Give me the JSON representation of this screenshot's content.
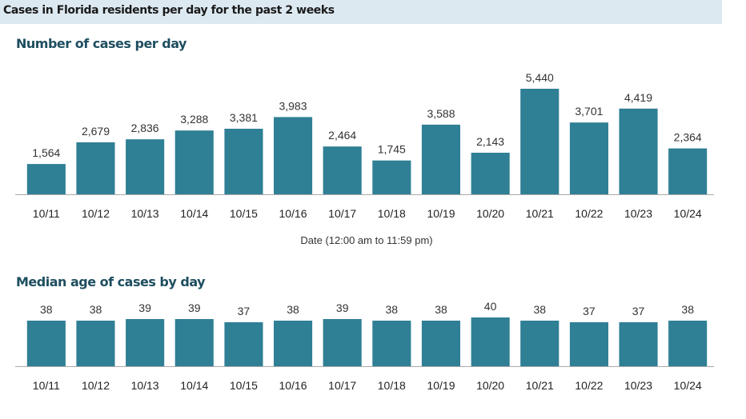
{
  "header": {
    "title": "Cases in Florida residents per day for the past 2 weeks"
  },
  "colors": {
    "bar": "#2f7f95",
    "axis": "#aaaaaa",
    "header_band": "#dde9f1",
    "chart_title": "#1e4e60"
  },
  "chart_data": [
    {
      "type": "bar",
      "title": "Number of cases per day",
      "xlabel": "Date (12:00 am to 11:59 pm)",
      "ylabel": "",
      "categories": [
        "10/11",
        "10/12",
        "10/13",
        "10/14",
        "10/15",
        "10/16",
        "10/17",
        "10/18",
        "10/19",
        "10/20",
        "10/21",
        "10/22",
        "10/23",
        "10/24"
      ],
      "values": [
        1564,
        2679,
        2836,
        3288,
        3381,
        3983,
        2464,
        1745,
        3588,
        2143,
        5440,
        3701,
        4419,
        2364
      ],
      "value_labels": [
        "1,564",
        "2,679",
        "2,836",
        "3,288",
        "3,381",
        "3,983",
        "2,464",
        "1,745",
        "3,588",
        "2,143",
        "5,440",
        "3,701",
        "4,419",
        "2,364"
      ],
      "ylim": [
        0,
        5440
      ],
      "grid": false
    },
    {
      "type": "bar",
      "title": "Median age of cases by day",
      "xlabel": "",
      "ylabel": "",
      "categories": [
        "10/11",
        "10/12",
        "10/13",
        "10/14",
        "10/15",
        "10/16",
        "10/17",
        "10/18",
        "10/19",
        "10/20",
        "10/21",
        "10/22",
        "10/23",
        "10/24"
      ],
      "values": [
        38,
        38,
        39,
        39,
        37,
        38,
        39,
        38,
        38,
        40,
        38,
        37,
        37,
        38
      ],
      "value_labels": [
        "38",
        "38",
        "39",
        "39",
        "37",
        "38",
        "39",
        "38",
        "38",
        "40",
        "38",
        "37",
        "37",
        "38"
      ],
      "ylim": [
        0,
        40
      ],
      "grid": false
    }
  ]
}
